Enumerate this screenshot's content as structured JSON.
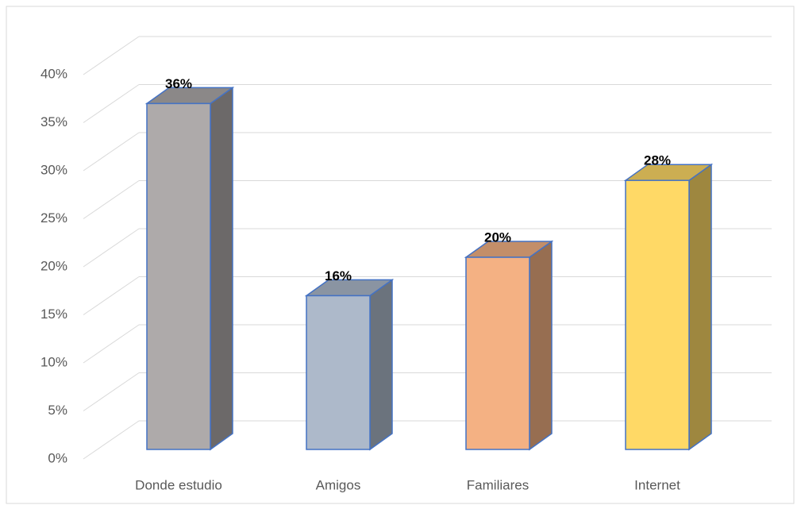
{
  "chart_data": {
    "type": "bar3d",
    "categories": [
      "Donde estudio",
      "Amigos",
      "Familiares",
      "Internet"
    ],
    "values": [
      36,
      16,
      20,
      28
    ],
    "value_labels": [
      "36%",
      "16%",
      "20%",
      "28%"
    ],
    "colors": [
      "#aeaaaa",
      "#adb9ca",
      "#f4b183",
      "#ffd966"
    ],
    "ylim": [
      0,
      40
    ],
    "yticks": [
      {
        "value": 0,
        "label": "0%"
      },
      {
        "value": 5,
        "label": "5%"
      },
      {
        "value": 10,
        "label": "10%"
      },
      {
        "value": 15,
        "label": "15%"
      },
      {
        "value": 20,
        "label": "20%"
      },
      {
        "value": 25,
        "label": "25%"
      },
      {
        "value": 30,
        "label": "30%"
      },
      {
        "value": 35,
        "label": "35%"
      },
      {
        "value": 40,
        "label": "40%"
      }
    ],
    "grid": true
  }
}
